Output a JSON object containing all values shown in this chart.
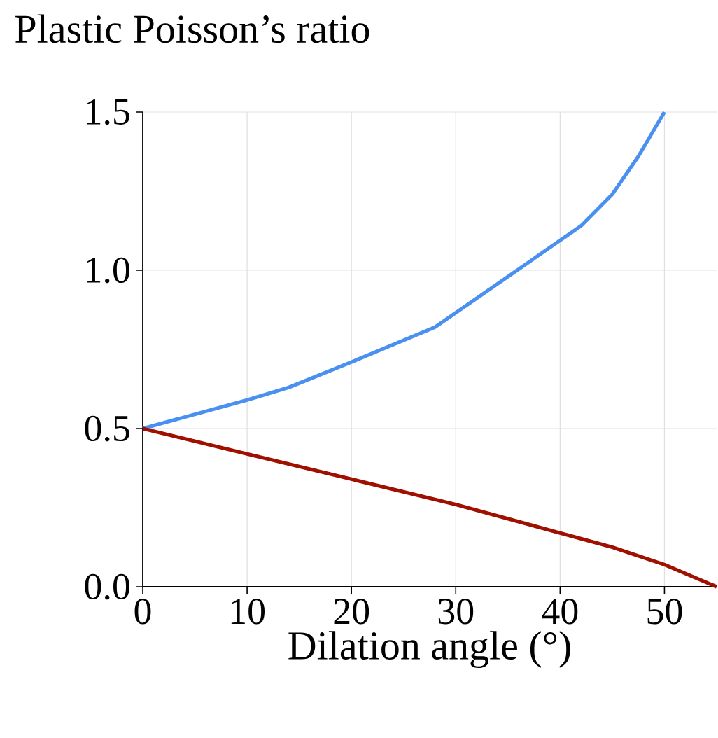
{
  "chart_data": {
    "type": "line",
    "title": "Plastic Poisson’s ratio",
    "xlabel": "Dilation angle (°)",
    "xlim": [
      0,
      55
    ],
    "xticks": [
      0,
      10,
      20,
      30,
      40,
      50
    ],
    "ylim": [
      0,
      1.5
    ],
    "yticks": [
      {
        "value": 0,
        "label": "0.0"
      },
      {
        "value": 0.5,
        "label": "0.5"
      },
      {
        "value": 1,
        "label": "1.0"
      },
      {
        "value": 1.5,
        "label": "1.5"
      }
    ],
    "grid": true,
    "series": [
      {
        "color": "#4a90f0",
        "x": [
          0,
          5,
          10,
          14,
          20,
          28,
          35,
          42,
          45,
          47.5,
          50
        ],
        "values": [
          0.5,
          0.545,
          0.59,
          0.63,
          0.71,
          0.82,
          0.98,
          1.14,
          1.24,
          1.36,
          1.5
        ]
      },
      {
        "color": "#a01000",
        "x": [
          0,
          10,
          20,
          30,
          40,
          45,
          50,
          55
        ],
        "values": [
          0.5,
          0.42,
          0.34,
          0.26,
          0.17,
          0.125,
          0.07,
          0.0
        ]
      }
    ]
  }
}
